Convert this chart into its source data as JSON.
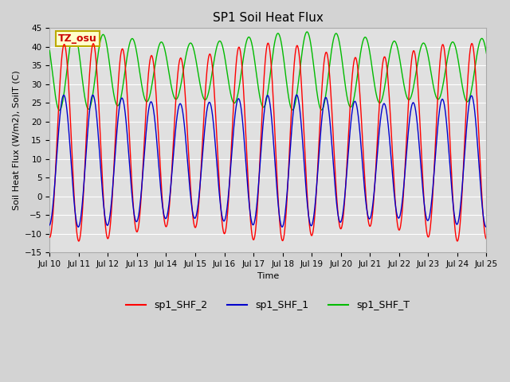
{
  "title": "SP1 Soil Heat Flux",
  "ylabel": "Soil Heat Flux (W/m2), SoilT (C)",
  "xlabel": "Time",
  "ylim": [
    -15,
    45
  ],
  "annotation_text": "TZ_osu",
  "x_tick_labels": [
    "Jul 10",
    "Jul 11",
    "Jul 12",
    "Jul 13",
    "Jul 14",
    "Jul 15",
    "Jul 16",
    "Jul 17",
    "Jul 18",
    "Jul 19",
    "Jul 20",
    "Jul 21",
    "Jul 22",
    "Jul 23",
    "Jul 24",
    "Jul 25"
  ],
  "background_color": "#d3d3d3",
  "plot_bg_color": "#e0e0e0",
  "grid_color": "#ffffff",
  "series": {
    "sp1_SHF_2": {
      "color": "#ff0000",
      "label": "sp1_SHF_2"
    },
    "sp1_SHF_1": {
      "color": "#0000cc",
      "label": "sp1_SHF_1"
    },
    "sp1_SHF_T": {
      "color": "#00bb00",
      "label": "sp1_SHF_T"
    }
  },
  "n_days": 15,
  "points_per_day": 480,
  "shf2_amplitude": 24.5,
  "shf2_mean": 14.5,
  "shf2_phase": -1.57,
  "shf1_amplitude": 16.5,
  "shf1_mean": 9.5,
  "shf1_phase": -1.47,
  "shfT_amplitude": 9.0,
  "shfT_mean": 33.5,
  "shfT_phase": -3.7,
  "title_fontsize": 11,
  "axis_label_fontsize": 8,
  "tick_fontsize": 7.5,
  "legend_fontsize": 9
}
